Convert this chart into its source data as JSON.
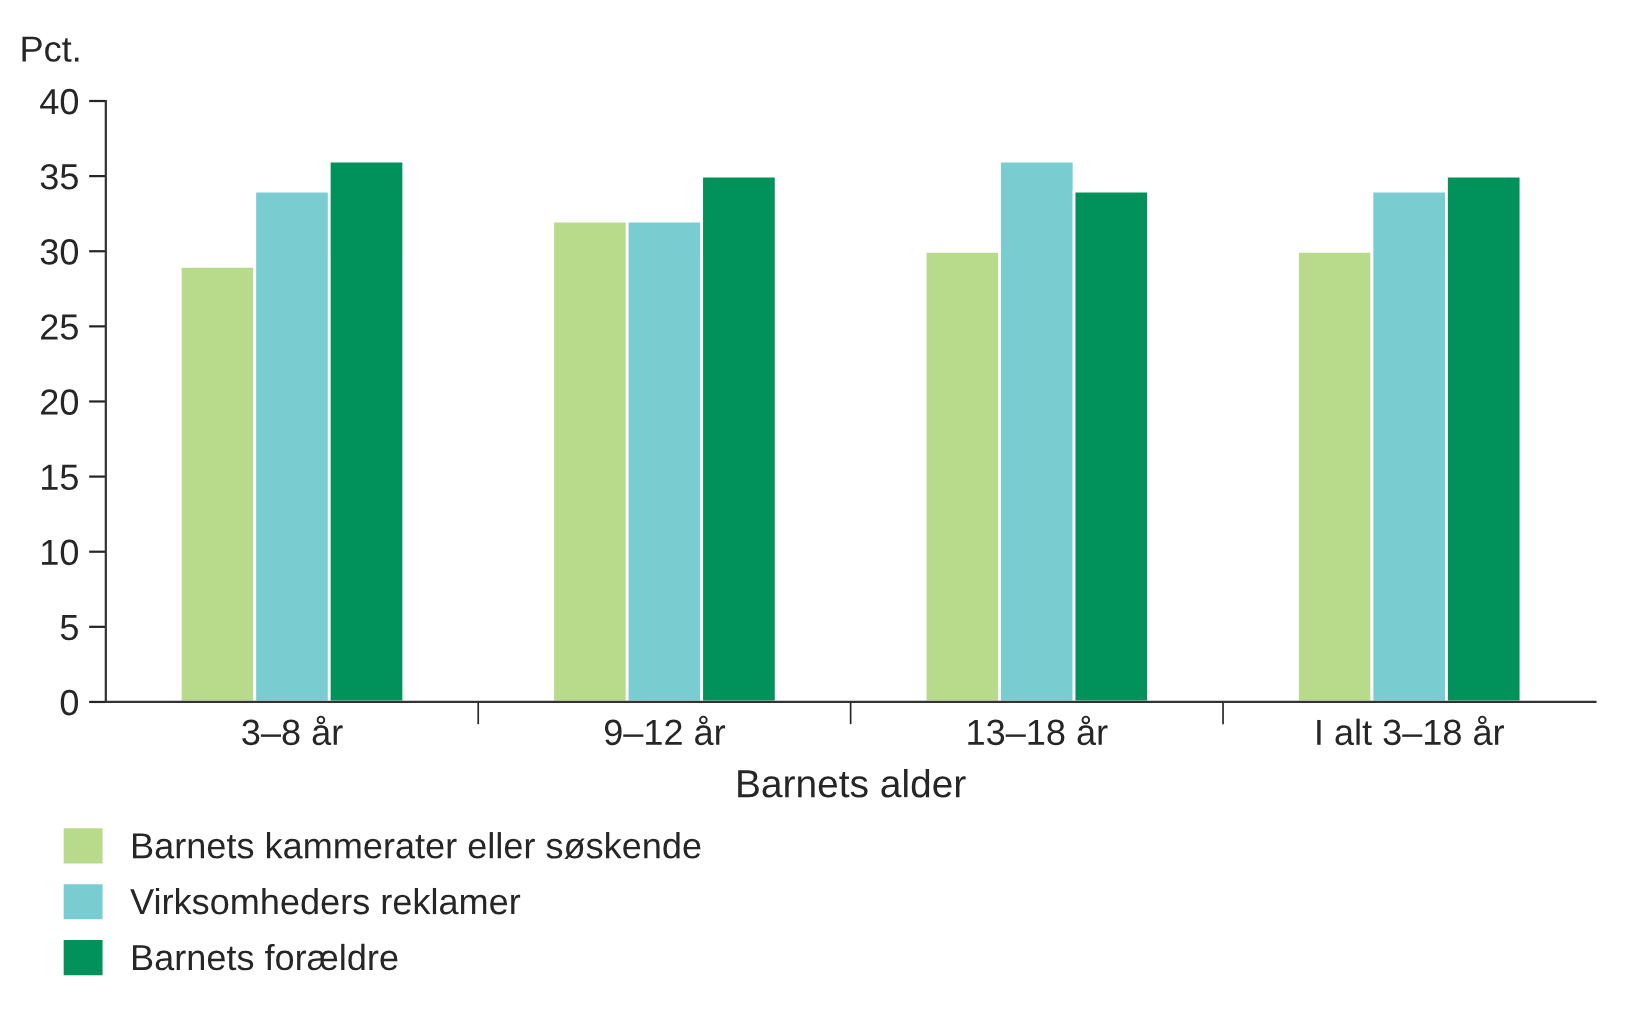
{
  "chart_data": {
    "type": "bar",
    "ylabel": "Pct.",
    "xlabel": "Barnets alder",
    "categories": [
      "3–8 år",
      "9–12 år",
      "13–18 år",
      "I alt 3–18 år"
    ],
    "series": [
      {
        "name": "Barnets kammerater eller søskende",
        "color": "#b8db8b",
        "values": [
          29,
          32,
          30,
          30
        ]
      },
      {
        "name": "Virksomheders reklamer",
        "color": "#79ccd0",
        "values": [
          34,
          32,
          36,
          34
        ]
      },
      {
        "name": "Barnets forældre",
        "color": "#00925a",
        "values": [
          36,
          35,
          34,
          35
        ]
      }
    ],
    "ylim": [
      0,
      40
    ],
    "yticks": [
      0,
      5,
      10,
      15,
      20,
      25,
      30,
      35,
      40
    ],
    "grid": false,
    "legend": "bottom"
  }
}
